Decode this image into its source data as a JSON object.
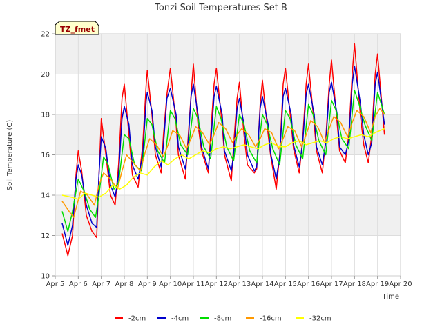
{
  "chart_data": {
    "type": "line",
    "title": "Tonzi Soil Temperatures Set B",
    "xlabel": "Time",
    "ylabel": "Soil Temperature (C)",
    "badge": "TZ_fmet",
    "xlim": [
      5,
      20
    ],
    "ylim": [
      10,
      22
    ],
    "x_tick_values": [
      5,
      6,
      7,
      8,
      9,
      10,
      11,
      12,
      13,
      14,
      15,
      16,
      17,
      18,
      19,
      20
    ],
    "x_tick_labels": [
      "Apr 5",
      "Apr 6",
      "Apr 7",
      "Apr 8",
      "Apr 9",
      "Apr 10",
      "Apr 11",
      "Apr 12",
      "Apr 13",
      "Apr 14",
      "Apr 15",
      "Apr 16",
      "Apr 17",
      "Apr 18",
      "Apr 19",
      "Apr 20"
    ],
    "y_ticks": [
      10,
      12,
      14,
      16,
      18,
      20,
      22
    ],
    "grid": true,
    "legend_position": "bottom",
    "series": [
      {
        "name": "-2cm",
        "color": "#ff0000",
        "x": [
          5.3,
          5.55,
          5.75,
          5.9,
          6.0,
          6.15,
          6.35,
          6.6,
          6.8,
          6.9,
          7.0,
          7.2,
          7.4,
          7.6,
          7.75,
          7.9,
          8.0,
          8.2,
          8.35,
          8.6,
          8.8,
          8.95,
          9.0,
          9.2,
          9.35,
          9.6,
          9.7,
          9.85,
          10.0,
          10.25,
          10.35,
          10.65,
          10.75,
          10.9,
          11.0,
          11.2,
          11.35,
          11.65,
          11.75,
          11.9,
          12.0,
          12.25,
          12.35,
          12.65,
          12.75,
          12.9,
          13.0,
          13.2,
          13.35,
          13.65,
          13.75,
          13.9,
          14.0,
          14.25,
          14.35,
          14.6,
          14.75,
          14.9,
          15.0,
          15.25,
          15.35,
          15.6,
          15.75,
          15.9,
          16.0,
          16.25,
          16.35,
          16.6,
          16.75,
          16.9,
          17.0,
          17.25,
          17.35,
          17.6,
          17.75,
          17.9,
          18.0,
          18.25,
          18.4,
          18.6,
          18.75,
          18.9,
          19.0,
          19.3
        ],
        "y": [
          12.1,
          11.0,
          12.0,
          15.0,
          16.2,
          15.2,
          13.0,
          12.2,
          11.9,
          15.0,
          17.8,
          16.0,
          14.0,
          13.5,
          15.5,
          18.8,
          19.5,
          17.0,
          15.0,
          14.4,
          16.5,
          19.5,
          20.2,
          18.0,
          16.0,
          15.1,
          17.0,
          19.0,
          20.3,
          17.5,
          16.0,
          14.8,
          16.5,
          19.0,
          20.5,
          17.5,
          16.2,
          15.1,
          17.0,
          19.5,
          20.3,
          17.5,
          16.0,
          14.7,
          16.5,
          18.8,
          19.6,
          17.0,
          15.5,
          15.1,
          15.3,
          18.5,
          19.7,
          17.0,
          16.0,
          14.3,
          16.0,
          19.5,
          20.3,
          17.5,
          16.3,
          15.1,
          16.8,
          19.5,
          20.5,
          17.5,
          16.2,
          15.1,
          16.8,
          19.5,
          20.7,
          17.5,
          16.2,
          15.6,
          17.0,
          20.0,
          21.5,
          18.0,
          16.5,
          15.6,
          17.0,
          20.0,
          21.0,
          17.0
        ]
      },
      {
        "name": "-4cm",
        "color": "#0000cc",
        "x": [
          5.3,
          5.55,
          5.75,
          5.9,
          6.0,
          6.15,
          6.35,
          6.6,
          6.8,
          6.9,
          7.0,
          7.2,
          7.4,
          7.6,
          7.75,
          7.9,
          8.0,
          8.2,
          8.35,
          8.6,
          8.8,
          8.95,
          9.0,
          9.2,
          9.35,
          9.6,
          9.7,
          9.85,
          10.0,
          10.25,
          10.35,
          10.65,
          10.75,
          10.9,
          11.0,
          11.2,
          11.35,
          11.65,
          11.75,
          11.9,
          12.0,
          12.25,
          12.35,
          12.65,
          12.75,
          12.9,
          13.0,
          13.2,
          13.35,
          13.65,
          13.75,
          13.9,
          14.0,
          14.25,
          14.35,
          14.6,
          14.75,
          14.9,
          15.0,
          15.25,
          15.35,
          15.6,
          15.75,
          15.9,
          16.0,
          16.25,
          16.35,
          16.6,
          16.75,
          16.9,
          17.0,
          17.25,
          17.35,
          17.6,
          17.75,
          17.9,
          18.0,
          18.25,
          18.4,
          18.6,
          18.75,
          18.9,
          19.0,
          19.3
        ],
        "y": [
          12.6,
          11.5,
          12.5,
          14.8,
          15.5,
          15.0,
          13.5,
          12.6,
          12.4,
          15.0,
          16.9,
          16.3,
          14.5,
          13.9,
          15.0,
          17.8,
          18.4,
          17.5,
          15.5,
          14.8,
          16.0,
          18.7,
          19.1,
          18.2,
          16.4,
          15.4,
          16.5,
          18.8,
          19.3,
          18.0,
          16.4,
          15.3,
          16.2,
          18.9,
          19.5,
          18.0,
          16.4,
          15.3,
          16.5,
          18.9,
          19.4,
          18.0,
          16.2,
          15.2,
          16.0,
          18.3,
          18.8,
          17.5,
          16.0,
          15.2,
          15.4,
          18.3,
          18.9,
          17.5,
          16.1,
          14.8,
          15.9,
          18.9,
          19.3,
          18.0,
          16.5,
          15.4,
          16.6,
          19.0,
          19.5,
          18.0,
          16.4,
          15.5,
          16.6,
          19.1,
          19.6,
          18.0,
          16.4,
          16.0,
          16.7,
          19.5,
          20.4,
          18.6,
          17.0,
          16.0,
          16.6,
          19.5,
          20.1,
          17.5
        ]
      },
      {
        "name": "-8cm",
        "color": "#00dd00",
        "x": [
          5.3,
          5.55,
          5.75,
          6.0,
          6.25,
          6.5,
          6.75,
          6.9,
          7.1,
          7.3,
          7.55,
          7.75,
          8.0,
          8.2,
          8.45,
          8.75,
          9.0,
          9.2,
          9.45,
          9.75,
          10.0,
          10.2,
          10.45,
          10.75,
          11.0,
          11.2,
          11.45,
          11.75,
          12.0,
          12.2,
          12.45,
          12.75,
          13.0,
          13.2,
          13.45,
          13.75,
          14.0,
          14.2,
          14.45,
          14.75,
          15.0,
          15.2,
          15.45,
          15.75,
          16.0,
          16.2,
          16.45,
          16.75,
          17.0,
          17.2,
          17.45,
          17.75,
          18.0,
          18.2,
          18.45,
          18.75,
          19.0,
          19.3
        ],
        "y": [
          13.2,
          12.2,
          13.2,
          14.8,
          14.2,
          13.3,
          12.9,
          14.0,
          15.9,
          15.5,
          14.3,
          14.6,
          17.0,
          16.8,
          15.5,
          15.2,
          17.8,
          17.5,
          16.2,
          15.6,
          18.2,
          17.8,
          16.5,
          16.0,
          18.3,
          17.8,
          16.4,
          15.8,
          18.4,
          17.8,
          16.4,
          15.7,
          18.0,
          17.5,
          16.2,
          15.6,
          18.0,
          17.5,
          16.3,
          15.5,
          18.2,
          17.8,
          16.5,
          15.8,
          18.5,
          18.0,
          16.7,
          16.0,
          18.7,
          18.2,
          16.8,
          16.3,
          19.2,
          18.5,
          17.5,
          16.7,
          19.1,
          18.0
        ]
      },
      {
        "name": "-16cm",
        "color": "#ff9900",
        "x": [
          5.3,
          5.6,
          5.8,
          6.1,
          6.4,
          6.7,
          6.9,
          7.1,
          7.4,
          7.7,
          7.9,
          8.1,
          8.4,
          8.7,
          8.9,
          9.1,
          9.4,
          9.7,
          9.9,
          10.1,
          10.4,
          10.7,
          10.9,
          11.1,
          11.4,
          11.7,
          11.9,
          12.1,
          12.4,
          12.7,
          12.9,
          13.1,
          13.4,
          13.7,
          13.9,
          14.1,
          14.4,
          14.7,
          14.9,
          15.1,
          15.4,
          15.7,
          15.9,
          16.1,
          16.4,
          16.7,
          16.9,
          17.1,
          17.4,
          17.7,
          17.9,
          18.1,
          18.4,
          18.7,
          18.9,
          19.1,
          19.3
        ],
        "y": [
          13.7,
          13.2,
          12.9,
          14.2,
          14.0,
          13.5,
          14.5,
          15.1,
          14.8,
          14.3,
          15.2,
          16.0,
          15.6,
          15.2,
          16.1,
          16.8,
          16.5,
          15.9,
          16.5,
          17.2,
          17.0,
          16.3,
          16.8,
          17.4,
          17.1,
          16.5,
          17.0,
          17.6,
          17.3,
          16.6,
          17.0,
          17.3,
          17.0,
          16.4,
          16.8,
          17.3,
          17.1,
          16.3,
          16.8,
          17.4,
          17.2,
          16.4,
          17.0,
          17.7,
          17.4,
          16.6,
          17.3,
          17.9,
          17.6,
          16.9,
          17.6,
          18.2,
          17.9,
          17.1,
          17.9,
          18.3,
          18.0
        ]
      },
      {
        "name": "-32cm",
        "color": "#ffff00",
        "x": [
          5.3,
          5.7,
          6.0,
          6.3,
          6.6,
          6.9,
          7.2,
          7.5,
          7.8,
          8.1,
          8.4,
          8.7,
          9.0,
          9.3,
          9.6,
          9.9,
          10.2,
          10.5,
          10.8,
          11.1,
          11.4,
          11.7,
          12.0,
          12.3,
          12.6,
          12.9,
          13.2,
          13.5,
          13.8,
          14.1,
          14.4,
          14.7,
          15.0,
          15.3,
          15.6,
          15.9,
          16.2,
          16.5,
          16.8,
          17.1,
          17.4,
          17.7,
          18.0,
          18.3,
          18.6,
          18.9,
          19.3
        ],
        "y": [
          14.0,
          13.9,
          13.8,
          14.1,
          14.0,
          13.9,
          14.1,
          14.5,
          14.3,
          14.5,
          14.9,
          15.1,
          15.0,
          15.4,
          15.7,
          15.5,
          15.8,
          16.0,
          15.8,
          16.0,
          16.2,
          16.1,
          16.3,
          16.4,
          16.3,
          16.4,
          16.5,
          16.4,
          16.3,
          16.5,
          16.6,
          16.4,
          16.4,
          16.6,
          16.7,
          16.5,
          16.6,
          16.7,
          16.6,
          16.8,
          16.9,
          16.8,
          16.9,
          17.0,
          16.9,
          17.1,
          17.3
        ]
      }
    ]
  }
}
